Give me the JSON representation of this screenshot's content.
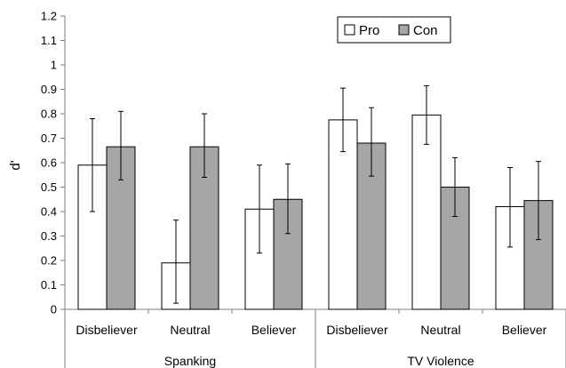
{
  "chart_data": {
    "type": "bar",
    "ylabel": "d'",
    "xlabel": "",
    "ylim": [
      0,
      1.2
    ],
    "yticks": [
      "0",
      "0.1",
      "0.2",
      "0.3",
      "0.4",
      "0.5",
      "0.6",
      "0.7",
      "0.8",
      "0.9",
      "1",
      "1.1",
      "1.2"
    ],
    "groups": [
      "Spanking",
      "TV Violence"
    ],
    "categories": [
      "Disbeliever",
      "Neutral",
      "Believer",
      "Disbeliever",
      "Neutral",
      "Believer"
    ],
    "series": [
      {
        "name": "Pro",
        "color": "#ffffff",
        "values": [
          0.59,
          0.19,
          0.41,
          0.775,
          0.795,
          0.42
        ],
        "err_low": [
          0.4,
          0.025,
          0.23,
          0.645,
          0.675,
          0.255
        ],
        "err_high": [
          0.78,
          0.365,
          0.59,
          0.905,
          0.915,
          0.58
        ]
      },
      {
        "name": "Con",
        "color": "#a6a6a6",
        "values": [
          0.665,
          0.665,
          0.45,
          0.68,
          0.5,
          0.445
        ],
        "err_low": [
          0.53,
          0.54,
          0.31,
          0.545,
          0.38,
          0.285
        ],
        "err_high": [
          0.81,
          0.8,
          0.595,
          0.825,
          0.62,
          0.605
        ]
      }
    ],
    "legend": {
      "position": "top-right"
    },
    "grid": false
  }
}
